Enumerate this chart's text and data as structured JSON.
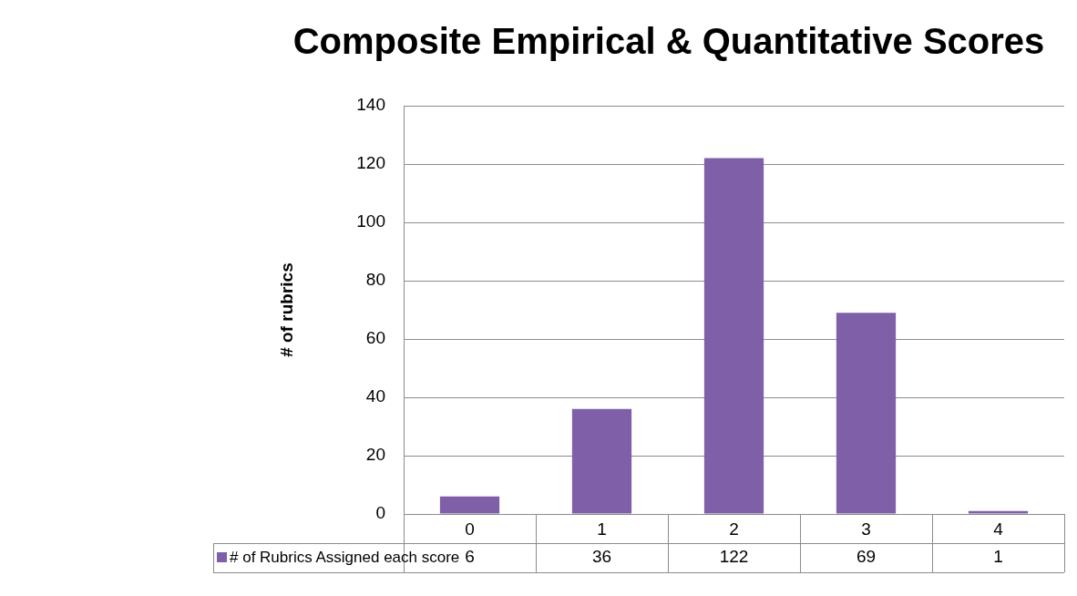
{
  "chart_data": {
    "type": "bar",
    "title": "Composite Empirical & Quantitative Scores",
    "ylabel": "# of rubrics",
    "categories": [
      "0",
      "1",
      "2",
      "3",
      "4"
    ],
    "series": [
      {
        "name": "# of Rubrics Assigned each score",
        "color": "#7f5fa8",
        "values": [
          6,
          36,
          122,
          69,
          1
        ]
      }
    ],
    "ylim": [
      0,
      140
    ],
    "yticks": [
      0,
      20,
      40,
      60,
      80,
      100,
      120,
      140
    ],
    "grid": "y",
    "legend": "bottom",
    "data_labels": true
  }
}
